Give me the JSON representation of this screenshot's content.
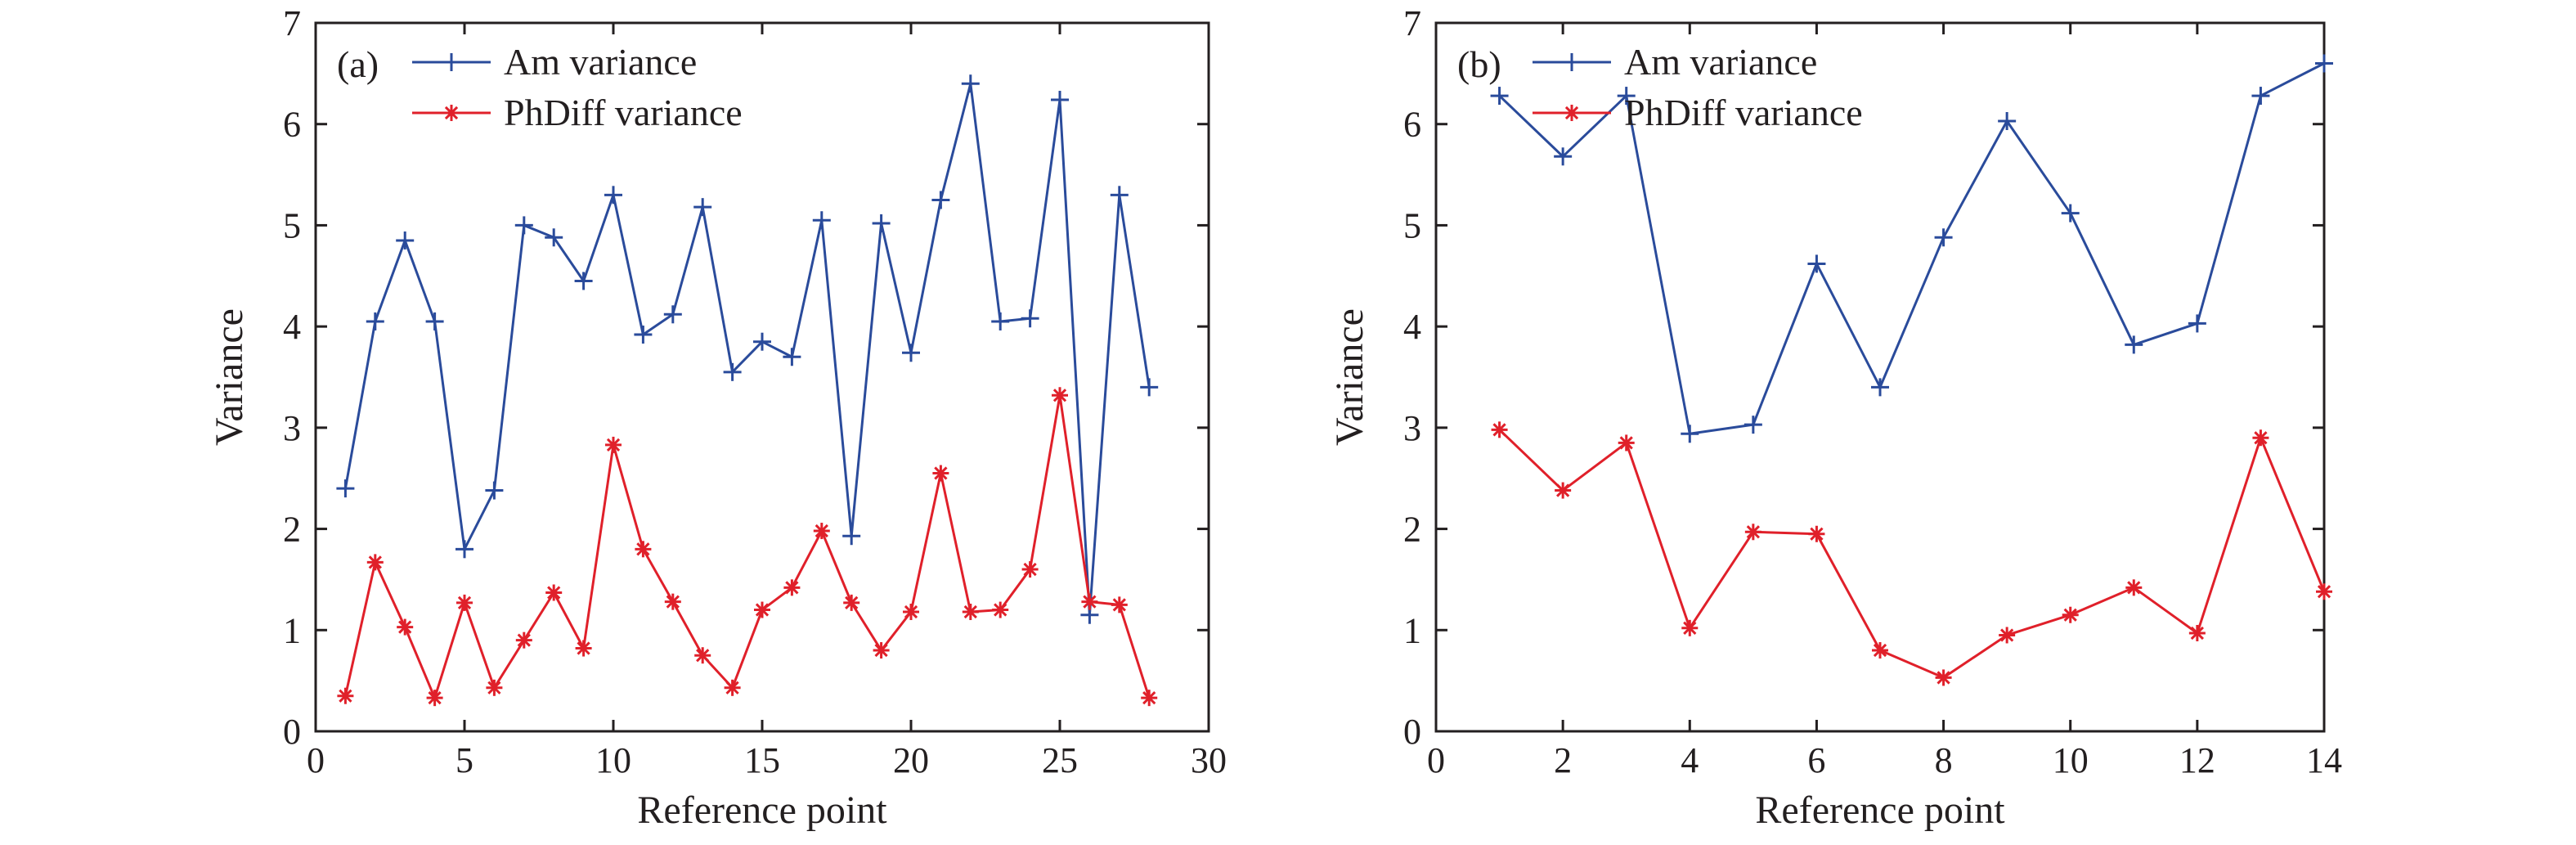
{
  "chart_data": [
    {
      "type": "line",
      "panel_label": "(a)",
      "xlabel": "Reference point",
      "ylabel": "Variance",
      "xlim": [
        0,
        30
      ],
      "ylim": [
        0,
        7
      ],
      "xticks": [
        0,
        5,
        10,
        15,
        20,
        25,
        30
      ],
      "yticks": [
        0,
        1,
        2,
        3,
        4,
        5,
        6,
        7
      ],
      "grid": false,
      "legend_position": "top-left",
      "x": [
        1,
        2,
        3,
        4,
        5,
        6,
        7,
        8,
        9,
        10,
        11,
        12,
        13,
        14,
        15,
        16,
        17,
        18,
        19,
        20,
        21,
        22,
        23,
        24,
        25,
        26,
        27,
        28
      ],
      "series": [
        {
          "name": "Am variance",
          "color": "#2a4b9b",
          "marker": "plus",
          "values": [
            2.4,
            4.05,
            4.85,
            4.05,
            1.8,
            2.38,
            5.0,
            4.88,
            4.45,
            5.3,
            3.92,
            4.12,
            5.18,
            3.55,
            3.85,
            3.7,
            5.05,
            1.93,
            5.02,
            3.74,
            5.25,
            6.4,
            4.05,
            4.08,
            6.24,
            1.15,
            5.3,
            3.4
          ]
        },
        {
          "name": "PhDiff variance",
          "color": "#e0202a",
          "marker": "asterisk",
          "values": [
            0.35,
            1.67,
            1.03,
            0.33,
            1.27,
            0.43,
            0.9,
            1.37,
            0.82,
            2.83,
            1.8,
            1.28,
            0.75,
            0.43,
            1.2,
            1.42,
            1.98,
            1.27,
            0.8,
            1.18,
            2.55,
            1.18,
            1.2,
            1.6,
            3.32,
            1.28,
            1.25,
            0.33
          ]
        }
      ]
    },
    {
      "type": "line",
      "panel_label": "(b)",
      "xlabel": "Reference point",
      "ylabel": "Variance",
      "xlim": [
        0,
        14
      ],
      "ylim": [
        0,
        7
      ],
      "xticks": [
        0,
        2,
        4,
        6,
        8,
        10,
        12,
        14
      ],
      "yticks": [
        0,
        1,
        2,
        3,
        4,
        5,
        6,
        7
      ],
      "grid": false,
      "legend_position": "top-left",
      "x": [
        1,
        2,
        3,
        4,
        5,
        6,
        7,
        8,
        9,
        10,
        11,
        12,
        13,
        14
      ],
      "series": [
        {
          "name": "Am variance",
          "color": "#2a4b9b",
          "marker": "plus",
          "values": [
            6.28,
            5.68,
            6.28,
            2.94,
            3.03,
            4.62,
            3.4,
            4.88,
            6.03,
            5.12,
            3.82,
            4.03,
            6.28,
            6.6
          ]
        },
        {
          "name": "PhDiff variance",
          "color": "#e0202a",
          "marker": "asterisk",
          "values": [
            2.98,
            2.38,
            2.85,
            1.02,
            1.97,
            1.95,
            0.8,
            0.53,
            0.95,
            1.15,
            1.42,
            0.97,
            2.9,
            1.38
          ]
        }
      ]
    }
  ]
}
